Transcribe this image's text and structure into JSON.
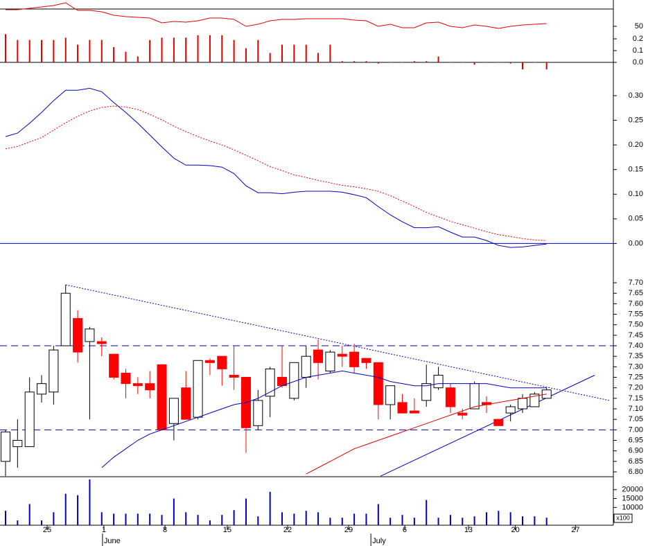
{
  "chart_data": {
    "type": "stock",
    "x": [
      0,
      1,
      2,
      3,
      4,
      5,
      6,
      7,
      8,
      9,
      10,
      11,
      12,
      13,
      14,
      15,
      16,
      17,
      18,
      19,
      20,
      21,
      22,
      23,
      24,
      25,
      26,
      27,
      28,
      29,
      30,
      31,
      32,
      33,
      34,
      35,
      36,
      37,
      38,
      39,
      40,
      41,
      42,
      43,
      44,
      45
    ],
    "xlim": [
      -0.46,
      50.55
    ],
    "xticks": [
      {
        "value": 3.46,
        "label": "25"
      },
      {
        "value": 8.18,
        "label": "1"
      },
      {
        "value": 13.26,
        "label": "8"
      },
      {
        "value": 18.44,
        "label": "15"
      },
      {
        "value": 23.46,
        "label": "22"
      },
      {
        "value": 28.53,
        "label": "29"
      },
      {
        "value": 33.2,
        "label": "6"
      },
      {
        "value": 38.5,
        "label": "13"
      },
      {
        "value": 42.4,
        "label": "20"
      },
      {
        "value": 47.4,
        "label": "27"
      }
    ],
    "months": [
      {
        "value": 8.18,
        "label": "June"
      },
      {
        "value": 30.5,
        "label": "July"
      }
    ],
    "panels": [
      {
        "ylim": [
          -0.059,
          0.53
        ],
        "y2lim": [
          19,
          69
        ],
        "yticks": [
          {
            "value": 0,
            "label": "0.0"
          },
          {
            "value": 0.1,
            "label": "0.1"
          },
          {
            "value": 0.2,
            "label": "0.2"
          }
        ],
        "y2ticks": [
          50
        ],
        "series": [
          {
            "style": "bar",
            "color": "#e00000",
            "values": [
              0.24,
              0.19,
              0.19,
              0.19,
              0.19,
              0.21,
              0.15,
              0.19,
              0.19,
              0.13,
              0.09,
              0.05,
              0.19,
              0.21,
              0.21,
              0.21,
              0.23,
              0.23,
              0.23,
              0.19,
              0.12,
              0.19,
              0.08,
              0.15,
              0.15,
              0.15,
              0.08,
              0.15,
              0.01,
              0.01,
              0.01,
              -0.01,
              0,
              0,
              0.01,
              0.01,
              0.05,
              0,
              0,
              -0.02,
              0,
              0,
              -0.01,
              -0.06,
              0,
              -0.06
            ]
          },
          {
            "style": "line",
            "axis": "y2",
            "color": "#e00000",
            "values": [
              62,
              62,
              63,
              64,
              65,
              67,
              61.5,
              61.5,
              60.5,
              58,
              57,
              56.5,
              56,
              52.5,
              53.5,
              53,
              54,
              56,
              56,
              55,
              50,
              51.5,
              54,
              55,
              55,
              55.5,
              55.5,
              55.5,
              55.5,
              54.5,
              54,
              50,
              51.5,
              49,
              49,
              52.5,
              53,
              50,
              49,
              51,
              50,
              48.5,
              50,
              51,
              51.5,
              52
            ]
          }
        ]
      },
      {
        "ylim": [
          -0.01,
          0.3535
        ],
        "zero_line_color": "#0000c0",
        "yticks": [
          {
            "value": 0,
            "label": "0.00"
          },
          {
            "value": 0.05,
            "label": "0.05"
          },
          {
            "value": 0.1,
            "label": "0.10"
          },
          {
            "value": 0.15,
            "label": "0.15"
          },
          {
            "value": 0.2,
            "label": "0.20"
          },
          {
            "value": 0.25,
            "label": "0.25"
          },
          {
            "value": 0.3,
            "label": "0.30"
          }
        ],
        "series": [
          {
            "style": "line",
            "color": "#0000c0",
            "values": [
              0.217,
              0.224,
              0.244,
              0.266,
              0.29,
              0.311,
              0.311,
              0.315,
              0.308,
              0.286,
              0.266,
              0.244,
              0.22,
              0.196,
              0.173,
              0.159,
              0.159,
              0.158,
              0.155,
              0.142,
              0.117,
              0.103,
              0.103,
              0.101,
              0.104,
              0.106,
              0.106,
              0.106,
              0.104,
              0.099,
              0.093,
              0.075,
              0.058,
              0.044,
              0.032,
              0.032,
              0.034,
              0.023,
              0.013,
              0.013,
              0.006,
              -0.004,
              -0.008,
              -0.007,
              -0.004,
              -0.001
            ]
          },
          {
            "style": "dotted",
            "color": "#e00000",
            "values": [
              0.192,
              0.197,
              0.206,
              0.215,
              0.23,
              0.245,
              0.258,
              0.269,
              0.276,
              0.279,
              0.277,
              0.272,
              0.262,
              0.251,
              0.238,
              0.227,
              0.217,
              0.208,
              0.2,
              0.19,
              0.179,
              0.168,
              0.156,
              0.148,
              0.139,
              0.134,
              0.128,
              0.123,
              0.118,
              0.115,
              0.111,
              0.106,
              0.097,
              0.086,
              0.075,
              0.063,
              0.054,
              0.045,
              0.038,
              0.031,
              0.024,
              0.018,
              0.014,
              0.01,
              0.007,
              0.006
            ]
          }
        ]
      },
      {
        "ylim": [
          6.777,
          7.865
        ],
        "yticks": [
          {
            "value": 6.8,
            "label": "6.80"
          },
          {
            "value": 6.85,
            "label": "6.85"
          },
          {
            "value": 6.9,
            "label": "6.90"
          },
          {
            "value": 6.95,
            "label": "6.95"
          },
          {
            "value": 7,
            "label": "7.00"
          },
          {
            "value": 7.05,
            "label": "7.05"
          },
          {
            "value": 7.1,
            "label": "7.10"
          },
          {
            "value": 7.15,
            "label": "7.15"
          },
          {
            "value": 7.2,
            "label": "7.20"
          },
          {
            "value": 7.25,
            "label": "7.25"
          },
          {
            "value": 7.3,
            "label": "7.30"
          },
          {
            "value": 7.35,
            "label": "7.35"
          },
          {
            "value": 7.4,
            "label": "7.40"
          },
          {
            "value": 7.45,
            "label": "7.45"
          },
          {
            "value": 7.5,
            "label": "7.50"
          },
          {
            "value": 7.55,
            "label": "7.55"
          },
          {
            "value": 7.6,
            "label": "7.60"
          },
          {
            "value": 7.65,
            "label": "7.65"
          },
          {
            "value": 7.7,
            "label": "7.70"
          }
        ],
        "hlines": [
          7.4,
          7.0
        ],
        "hline_color": "#0000c0",
        "trendlines": [
          {
            "x": [
              5,
              50.2
            ],
            "y": [
              7.69,
              7.14
            ],
            "color": "#0000c0",
            "dash": "dotted"
          },
          {
            "x": [
              31.2,
              49
            ],
            "y": [
              6.78,
              7.26
            ],
            "color": "#0000c0",
            "dash": "solid"
          }
        ],
        "series": [
          {
            "style": "candle",
            "up_color": "#ffffff",
            "down_color": "#ff0000",
            "open": [
              6.85,
              6.92,
              6.92,
              7.17,
              7.18,
              7.4,
              7.53,
              7.42,
              7.42,
              7.36,
              7.27,
              7.22,
              7.22,
              7.31,
              7.03,
              7.2,
              7.06,
              7.33,
              7.35,
              7.26,
              7.25,
              7.02,
              7.16,
              7.25,
              7.15,
              7.25,
              7.38,
              7.28,
              7.36,
              7.37,
              7.34,
              7.32,
              7.12,
              7.13,
              7.09,
              7.14,
              7.2,
              7.2,
              7.08,
              7.1,
              7.13,
              7.05,
              7.08,
              7.1,
              7.11,
              7.15
            ],
            "high": [
              7.0,
              7.05,
              7.25,
              7.26,
              7.4,
              7.69,
              7.57,
              7.49,
              7.44,
              7.36,
              7.29,
              7.25,
              7.28,
              7.31,
              7.15,
              7.28,
              7.33,
              7.34,
              7.35,
              7.4,
              7.25,
              7.19,
              7.3,
              7.4,
              7.32,
              7.4,
              7.43,
              7.38,
              7.4,
              7.41,
              7.34,
              7.32,
              7.21,
              7.17,
              7.15,
              7.31,
              7.3,
              7.22,
              7.1,
              7.23,
              7.16,
              7.05,
              7.12,
              7.17,
              7.18,
              7.2
            ],
            "low": [
              6.78,
              6.82,
              6.92,
              7.13,
              7.12,
              7.4,
              7.32,
              7.05,
              7.35,
              7.24,
              7.15,
              7.17,
              7.15,
              7.0,
              6.95,
              7.05,
              7.05,
              7.26,
              7.21,
              7.19,
              6.89,
              7.0,
              7.06,
              7.2,
              7.14,
              7.2,
              7.24,
              7.27,
              7.3,
              7.27,
              7.29,
              7.05,
              7.05,
              7.08,
              7.08,
              7.11,
              7.19,
              7.08,
              7.05,
              7.1,
              7.08,
              7.02,
              7.04,
              7.08,
              7.11,
              7.15
            ],
            "close": [
              6.99,
              6.95,
              7.18,
              7.22,
              7.38,
              7.65,
              7.37,
              7.48,
              7.41,
              7.25,
              7.22,
              7.21,
              7.19,
              7.0,
              7.15,
              7.05,
              7.33,
              7.32,
              7.29,
              7.25,
              7.01,
              7.14,
              7.29,
              7.21,
              7.32,
              7.35,
              7.32,
              7.37,
              7.35,
              7.3,
              7.32,
              7.12,
              7.21,
              7.08,
              7.08,
              7.22,
              7.26,
              7.11,
              7.07,
              7.22,
              7.12,
              7.02,
              7.11,
              7.15,
              7.17,
              7.19
            ]
          },
          {
            "style": "line",
            "color": "#0000c0",
            "values": [
              null,
              null,
              null,
              null,
              null,
              null,
              null,
              null,
              6.82,
              6.87,
              6.91,
              6.95,
              6.98,
              7.0,
              7.02,
              7.04,
              7.06,
              7.08,
              7.1,
              7.12,
              7.13,
              7.15,
              7.18,
              7.21,
              7.23,
              7.25,
              7.26,
              7.27,
              7.28,
              7.27,
              7.26,
              7.25,
              7.23,
              7.22,
              7.21,
              7.21,
              7.22,
              7.22,
              7.22,
              7.22,
              7.22,
              7.21,
              7.2,
              7.2,
              7.2,
              7.2
            ]
          },
          {
            "style": "line",
            "color": "#e00000",
            "values": [
              null,
              null,
              null,
              null,
              null,
              null,
              null,
              null,
              null,
              null,
              null,
              null,
              null,
              null,
              null,
              null,
              null,
              null,
              null,
              null,
              null,
              null,
              null,
              null,
              null,
              6.79,
              6.82,
              6.85,
              6.88,
              6.91,
              6.93,
              6.95,
              6.97,
              6.99,
              7.01,
              7.03,
              7.05,
              7.07,
              7.09,
              7.11,
              7.12,
              7.13,
              7.14,
              7.15,
              7.16,
              7.17
            ]
          }
        ]
      },
      {
        "ylim": [
          0,
          27300
        ],
        "unit_label": "x100",
        "yticks": [
          20000,
          15000,
          10000
        ],
        "series": [
          {
            "style": "bar",
            "color": "#0000c0",
            "values": [
              8100,
              2700,
              11900,
              2700,
              7300,
              17700,
              16900,
              25800,
              7300,
              6500,
              6500,
              6500,
              6500,
              5800,
              15000,
              7300,
              5800,
              2700,
              5800,
              8500,
              15000,
              5000,
              18800,
              7300,
              6500,
              8100,
              7300,
              4200,
              4200,
              6500,
              6500,
              11900,
              4200,
              5800,
              4200,
              14200,
              4200,
              5800,
              4200,
              5000,
              7300,
              8100,
              7300,
              5000,
              5000,
              4200
            ]
          }
        ]
      }
    ]
  }
}
